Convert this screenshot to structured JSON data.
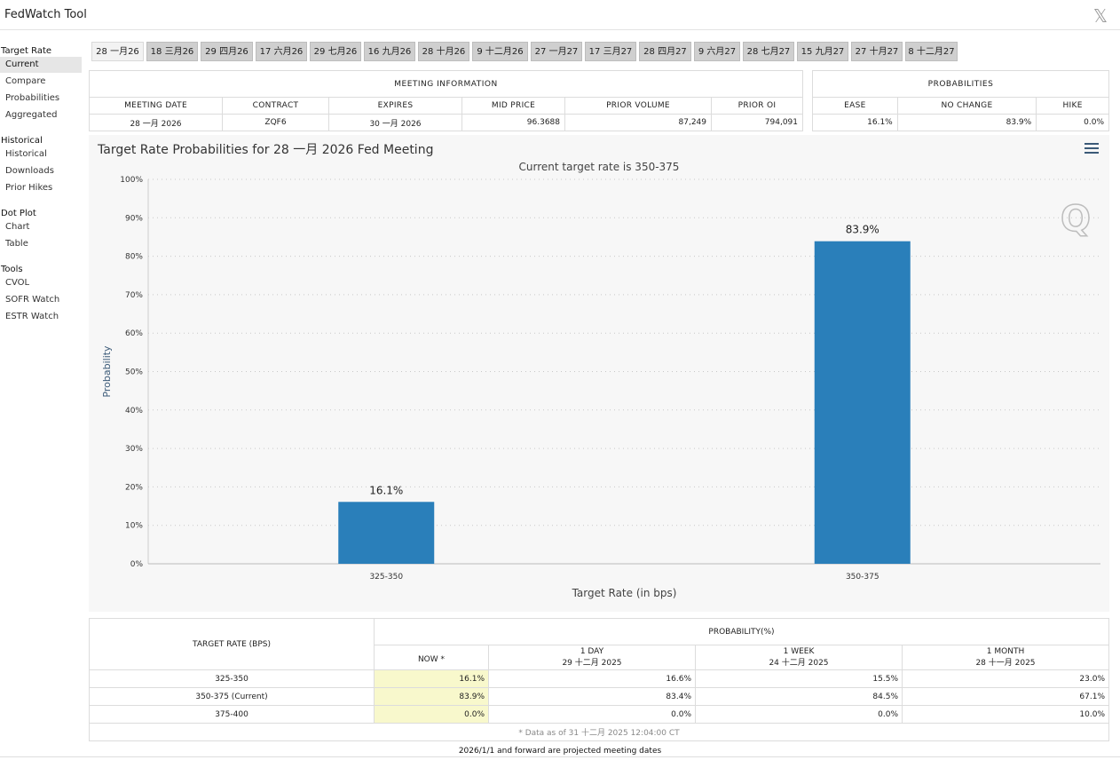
{
  "app": {
    "title": "FedWatch Tool",
    "close_label": "𝕏"
  },
  "sidebar": {
    "groups": [
      {
        "label": "Target Rate",
        "items": [
          "Current",
          "Compare",
          "Probabilities",
          "Aggregated"
        ]
      },
      {
        "label": "Historical",
        "items": [
          "Historical",
          "Downloads",
          "Prior Hikes"
        ]
      },
      {
        "label": "Dot Plot",
        "items": [
          "Chart",
          "Table"
        ]
      },
      {
        "label": "Tools",
        "items": [
          "CVOL",
          "SOFR Watch",
          "ESTR Watch"
        ]
      }
    ]
  },
  "tabs": [
    "28 一月26",
    "18 三月26",
    "29 四月26",
    "17 六月26",
    "29 七月26",
    "16 九月26",
    "28 十月26",
    "9 十二月26",
    "27 一月27",
    "17 三月27",
    "28 四月27",
    "9 六月27",
    "28 七月27",
    "15 九月27",
    "27 十月27",
    "8 十二月27"
  ],
  "meeting_info": {
    "title": "MEETING INFORMATION",
    "headers": [
      "MEETING DATE",
      "CONTRACT",
      "EXPIRES",
      "MID PRICE",
      "PRIOR VOLUME",
      "PRIOR OI"
    ],
    "row": [
      "28 一月 2026",
      "ZQF6",
      "30 一月 2026",
      "96.3688",
      "87,249",
      "794,091"
    ]
  },
  "probabilities": {
    "title": "PROBABILITIES",
    "headers": [
      "EASE",
      "NO CHANGE",
      "HIKE"
    ],
    "row": [
      "16.1%",
      "83.9%",
      "0.0%"
    ]
  },
  "chart_header": {
    "title": "Target Rate Probabilities for 28 一月 2026 Fed Meeting"
  },
  "chart_data": {
    "type": "bar",
    "title": "Target Rate Probabilities for 28 一月 2026 Fed Meeting",
    "subtitle": "Current target rate is 350-375",
    "categories": [
      "325-350",
      "350-375"
    ],
    "values": [
      16.1,
      83.9
    ],
    "value_labels": [
      "16.1%",
      "83.9%"
    ],
    "xlabel": "Target Rate (in bps)",
    "ylabel": "Probability",
    "ylim": [
      0,
      100
    ],
    "yticks": [
      "0%",
      "10%",
      "20%",
      "30%",
      "40%",
      "50%",
      "60%",
      "70%",
      "80%",
      "90%",
      "100%"
    ],
    "bar_color": "#2a7fba",
    "watermark": "Q"
  },
  "bottom_table": {
    "target_header": "TARGET RATE (BPS)",
    "prob_header": "PROBABILITY(%)",
    "columns": [
      {
        "label": "NOW *",
        "sub": ""
      },
      {
        "label": "1 DAY",
        "sub": "29 十二月 2025"
      },
      {
        "label": "1 WEEK",
        "sub": "24 十二月 2025"
      },
      {
        "label": "1 MONTH",
        "sub": "28 十一月 2025"
      }
    ],
    "rows": [
      {
        "rate": "325-350",
        "values": [
          "16.1%",
          "16.6%",
          "15.5%",
          "23.0%"
        ]
      },
      {
        "rate": "350-375 (Current)",
        "values": [
          "83.9%",
          "83.4%",
          "84.5%",
          "67.1%"
        ]
      },
      {
        "rate": "375-400",
        "values": [
          "0.0%",
          "0.0%",
          "0.0%",
          "10.0%"
        ]
      }
    ],
    "note": "* Data as of 31 十二月 2025 12:04:00 CT"
  },
  "footer": "2026/1/1 and forward are projected meeting dates"
}
